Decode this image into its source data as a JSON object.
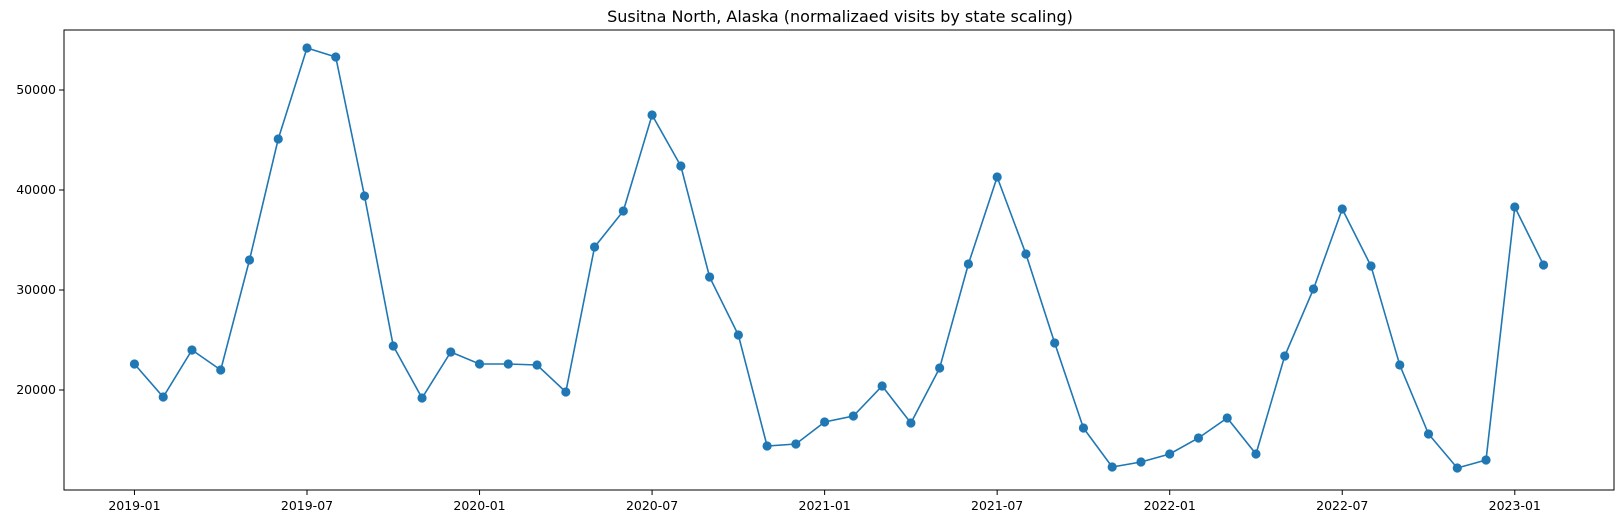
{
  "chart_data": {
    "type": "line",
    "title": "Susitna North, Alaska (normalizaed visits by state scaling)",
    "xlabel": "",
    "ylabel": "",
    "x_ticks": [
      "2019-01",
      "2019-07",
      "2020-01",
      "2020-07",
      "2021-01",
      "2021-07",
      "2022-01",
      "2022-07",
      "2023-01"
    ],
    "y_ticks": [
      20000,
      30000,
      40000,
      50000
    ],
    "ylim": [
      10000,
      56000
    ],
    "grid": false,
    "line_color": "#1f77b4",
    "marker": "circle",
    "series": [
      {
        "x": [
          "2019-01",
          "2019-02",
          "2019-03",
          "2019-04",
          "2019-05",
          "2019-06",
          "2019-07",
          "2019-08",
          "2019-09",
          "2019-10",
          "2019-11",
          "2019-12",
          "2020-01",
          "2020-02",
          "2020-03",
          "2020-04",
          "2020-05",
          "2020-06",
          "2020-07",
          "2020-08",
          "2020-09",
          "2020-10",
          "2020-11",
          "2020-12",
          "2021-01",
          "2021-02",
          "2021-03",
          "2021-04",
          "2021-05",
          "2021-06",
          "2021-07",
          "2021-08",
          "2021-09",
          "2021-10",
          "2021-11",
          "2021-12",
          "2022-01",
          "2022-02",
          "2022-03",
          "2022-04",
          "2022-05",
          "2022-06",
          "2022-07",
          "2022-08",
          "2022-09",
          "2022-10",
          "2022-11",
          "2022-12",
          "2023-01",
          "2023-02"
        ],
        "values": [
          22600,
          19300,
          24000,
          22000,
          33000,
          45100,
          54200,
          53300,
          39400,
          24400,
          19200,
          23800,
          22600,
          22600,
          22500,
          19800,
          34300,
          37900,
          47500,
          42400,
          31300,
          25500,
          14400,
          14600,
          16800,
          17400,
          20400,
          16700,
          22200,
          32600,
          41300,
          33600,
          24700,
          16200,
          12300,
          12800,
          13600,
          15200,
          17200,
          13600,
          23400,
          30100,
          38100,
          32400,
          22500,
          15600,
          12200,
          13000,
          38300,
          32500
        ]
      }
    ]
  }
}
